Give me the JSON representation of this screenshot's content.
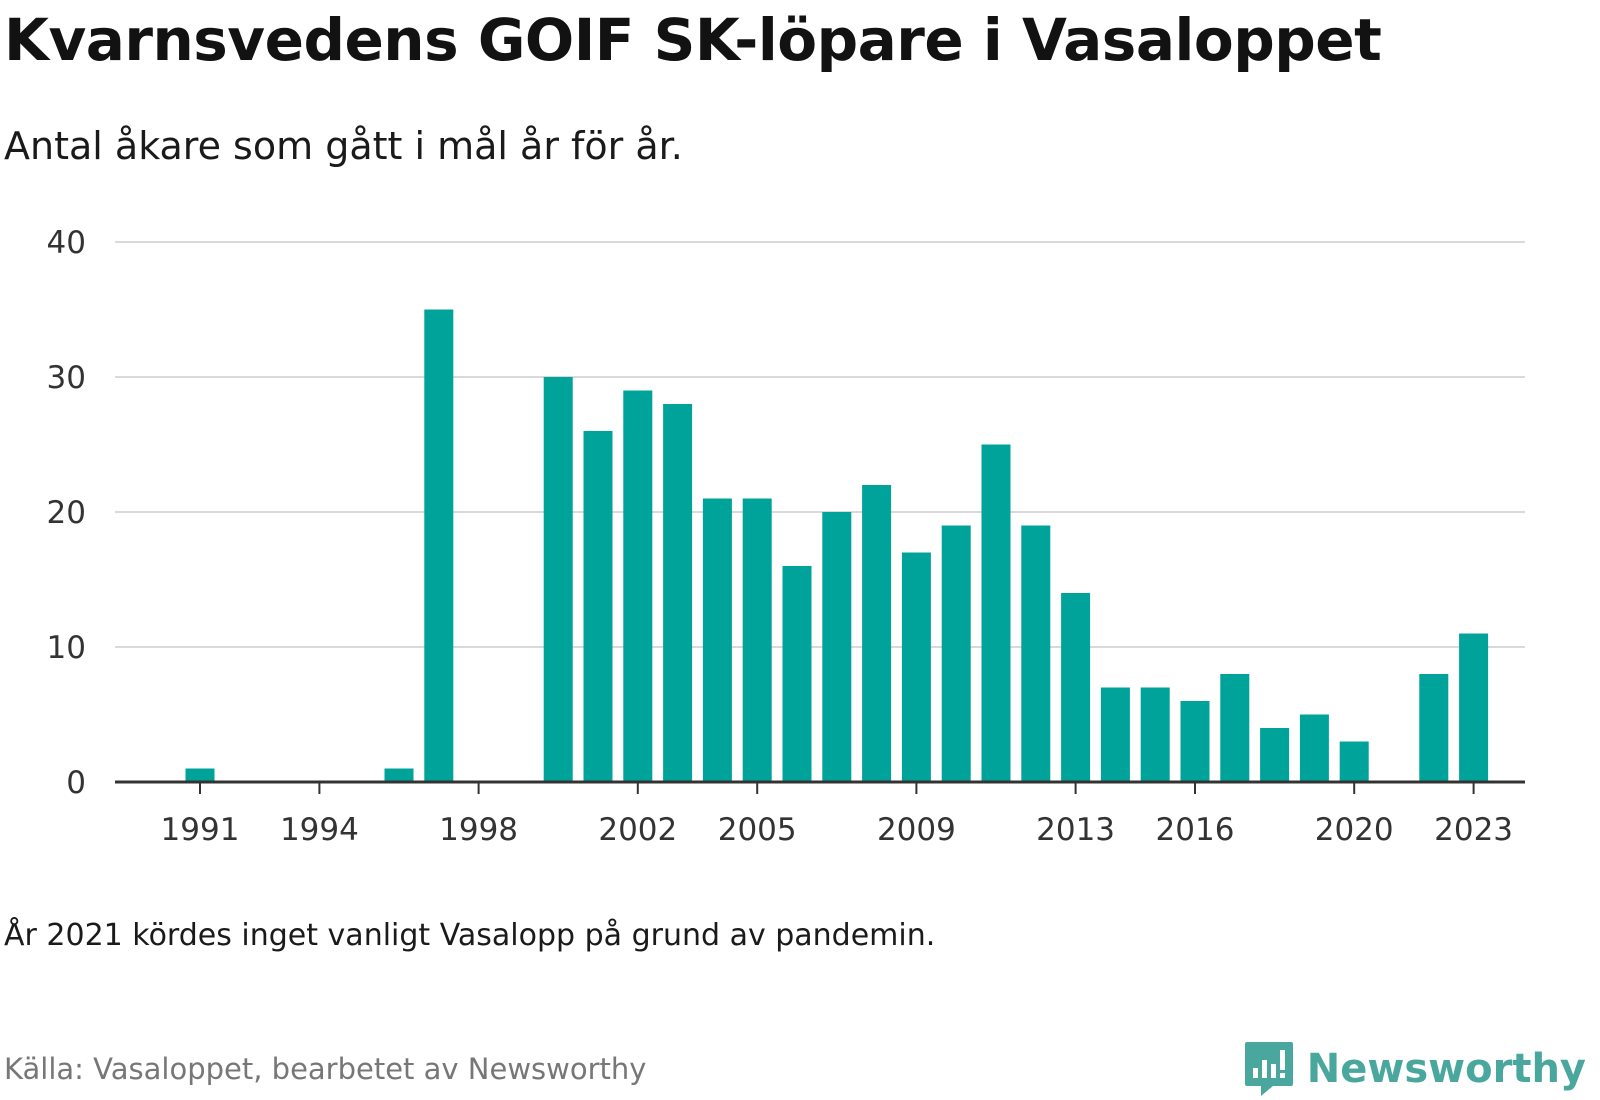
{
  "title": "Kvarnsvedens GOIF SK-löpare i Vasaloppet",
  "subtitle": "Antal åkare som gått i mål år för år.",
  "footnote": "År 2021 kördes inget vanligt Vasalopp på grund av pandemin.",
  "source": "Källa: Vasaloppet, bearbetet av Newsworthy",
  "brand": {
    "name": "Newsworthy",
    "icon": "newsworthy-logo-icon",
    "color": "#4aa79e"
  },
  "colors": {
    "bar": "#00a39a",
    "grid": "#d9d9d9",
    "axis": "#333333"
  },
  "chart_data": {
    "type": "bar",
    "x": [
      1991,
      1992,
      1993,
      1994,
      1995,
      1996,
      1997,
      1998,
      1999,
      2000,
      2001,
      2002,
      2003,
      2004,
      2005,
      2006,
      2007,
      2008,
      2009,
      2010,
      2011,
      2012,
      2013,
      2014,
      2015,
      2016,
      2017,
      2018,
      2019,
      2020,
      2021,
      2022,
      2023
    ],
    "values": [
      1,
      0,
      0,
      0,
      0,
      1,
      35,
      0,
      0,
      30,
      26,
      29,
      28,
      21,
      21,
      16,
      20,
      22,
      17,
      19,
      25,
      19,
      14,
      7,
      7,
      6,
      8,
      4,
      5,
      3,
      0,
      8,
      11
    ],
    "xticks": [
      "1991",
      "1994",
      "1998",
      "2002",
      "2005",
      "2009",
      "2013",
      "2016",
      "2020",
      "2023"
    ],
    "yticks": [
      "0",
      "10",
      "20",
      "30",
      "40"
    ],
    "ylim": [
      0,
      40
    ],
    "grid": true,
    "xlabel": "",
    "ylabel": ""
  }
}
